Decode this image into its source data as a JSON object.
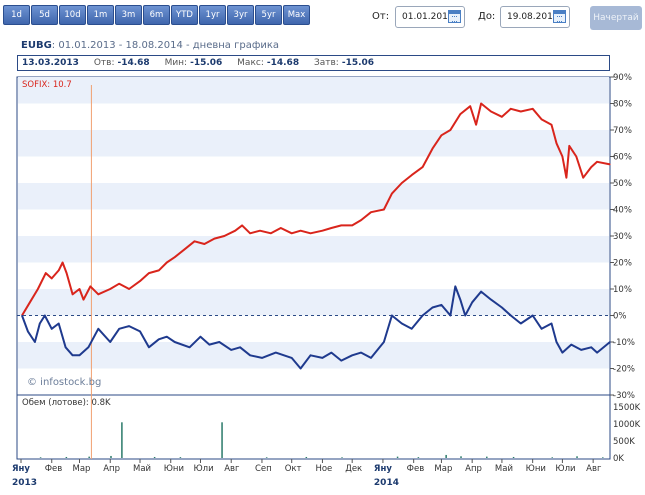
{
  "toolbar": {
    "periods": [
      "1d",
      "5d",
      "10d",
      "1m",
      "3m",
      "6m",
      "YTD",
      "1yr",
      "3yr",
      "5yr",
      "Max"
    ],
    "from_label": "От:",
    "from_value": "01.01.2013",
    "to_label": "До:",
    "to_value": "19.08.2014",
    "draw_label": "Начертай"
  },
  "title": {
    "symbol": "EUBG",
    "range": ": 01.01.2013 - 18.08.2014 - дневна графика"
  },
  "stats": {
    "date": "13.03.2013",
    "open_label": "Отв:",
    "open": "-14.68",
    "min_label": "Мин:",
    "min": "-15.06",
    "max_label": "Макс:",
    "max": "-14.68",
    "close_label": "Затв:",
    "close": "-15.06"
  },
  "overlay_label": "SOFIX: 10.7",
  "watermark": "© infostock.bg",
  "volume_label": "Обем (лотове): 0.8K",
  "colors": {
    "sofix": "#d9251c",
    "eubg": "#1f3a8e",
    "cursor": "#f0a070",
    "band": "#eaf0fa",
    "border": "#2b4a86"
  },
  "chart_data": {
    "type": "line",
    "price_axis": {
      "min": -30,
      "max": 90,
      "ticks": [
        "90%",
        "80%",
        "70%",
        "60%",
        "50%",
        "40%",
        "30%",
        "20%",
        "10%",
        "0%",
        "-10%",
        "-20%",
        "-30%"
      ]
    },
    "volume_axis": {
      "max": 1500000,
      "ticks": [
        "1500K",
        "1000K",
        "500K",
        "0K"
      ]
    },
    "months": [
      "Яну",
      "Фев",
      "Мар",
      "Апр",
      "Май",
      "Юни",
      "Юли",
      "Авг",
      "Сеп",
      "Окт",
      "Ное",
      "Дек",
      "Яну",
      "Фев",
      "Мар",
      "Апр",
      "Май",
      "Юни",
      "Юли",
      "Авг"
    ],
    "years": [
      "2013",
      "2014"
    ],
    "cursor_date": "2013-03-13",
    "series": [
      {
        "name": "SOFIX",
        "points": [
          [
            "2013-01-02",
            0
          ],
          [
            "2013-01-10",
            5
          ],
          [
            "2013-01-18",
            10
          ],
          [
            "2013-01-26",
            16
          ],
          [
            "2013-02-01",
            14
          ],
          [
            "2013-02-08",
            17
          ],
          [
            "2013-02-12",
            20
          ],
          [
            "2013-02-16",
            16
          ],
          [
            "2013-02-22",
            8
          ],
          [
            "2013-03-01",
            10
          ],
          [
            "2013-03-05",
            6
          ],
          [
            "2013-03-12",
            11
          ],
          [
            "2013-03-20",
            8
          ],
          [
            "2013-04-01",
            10
          ],
          [
            "2013-04-10",
            12
          ],
          [
            "2013-04-20",
            10
          ],
          [
            "2013-05-01",
            13
          ],
          [
            "2013-05-10",
            16
          ],
          [
            "2013-05-20",
            17
          ],
          [
            "2013-05-28",
            20
          ],
          [
            "2013-06-05",
            22
          ],
          [
            "2013-06-15",
            25
          ],
          [
            "2013-06-25",
            28
          ],
          [
            "2013-07-05",
            27
          ],
          [
            "2013-07-15",
            29
          ],
          [
            "2013-07-25",
            30
          ],
          [
            "2013-08-05",
            32
          ],
          [
            "2013-08-12",
            34
          ],
          [
            "2013-08-20",
            31
          ],
          [
            "2013-08-30",
            32
          ],
          [
            "2013-09-10",
            31
          ],
          [
            "2013-09-20",
            33
          ],
          [
            "2013-10-01",
            31
          ],
          [
            "2013-10-10",
            32
          ],
          [
            "2013-10-20",
            31
          ],
          [
            "2013-11-01",
            32
          ],
          [
            "2013-11-10",
            33
          ],
          [
            "2013-11-20",
            34
          ],
          [
            "2013-12-01",
            34
          ],
          [
            "2013-12-10",
            36
          ],
          [
            "2013-12-20",
            39
          ],
          [
            "2014-01-02",
            40
          ],
          [
            "2014-01-10",
            46
          ],
          [
            "2014-01-20",
            50
          ],
          [
            "2014-01-30",
            53
          ],
          [
            "2014-02-10",
            56
          ],
          [
            "2014-02-20",
            63
          ],
          [
            "2014-03-01",
            68
          ],
          [
            "2014-03-10",
            70
          ],
          [
            "2014-03-20",
            76
          ],
          [
            "2014-03-30",
            79
          ],
          [
            "2014-04-05",
            72
          ],
          [
            "2014-04-10",
            80
          ],
          [
            "2014-04-20",
            77
          ],
          [
            "2014-05-01",
            75
          ],
          [
            "2014-05-10",
            78
          ],
          [
            "2014-05-20",
            77
          ],
          [
            "2014-06-01",
            78
          ],
          [
            "2014-06-10",
            74
          ],
          [
            "2014-06-20",
            72
          ],
          [
            "2014-06-25",
            65
          ],
          [
            "2014-07-01",
            60
          ],
          [
            "2014-07-05",
            52
          ],
          [
            "2014-07-08",
            64
          ],
          [
            "2014-07-15",
            60
          ],
          [
            "2014-07-22",
            52
          ],
          [
            "2014-07-30",
            56
          ],
          [
            "2014-08-05",
            58
          ],
          [
            "2014-08-18",
            57
          ]
        ]
      },
      {
        "name": "EUBG",
        "points": [
          [
            "2013-01-02",
            0
          ],
          [
            "2013-01-08",
            -6
          ],
          [
            "2013-01-15",
            -10
          ],
          [
            "2013-01-20",
            -3
          ],
          [
            "2013-01-25",
            0
          ],
          [
            "2013-02-01",
            -5
          ],
          [
            "2013-02-08",
            -3
          ],
          [
            "2013-02-15",
            -12
          ],
          [
            "2013-02-22",
            -15
          ],
          [
            "2013-03-01",
            -15
          ],
          [
            "2013-03-10",
            -12
          ],
          [
            "2013-03-20",
            -5
          ],
          [
            "2013-04-01",
            -10
          ],
          [
            "2013-04-10",
            -5
          ],
          [
            "2013-04-20",
            -4
          ],
          [
            "2013-05-01",
            -6
          ],
          [
            "2013-05-10",
            -12
          ],
          [
            "2013-05-20",
            -9
          ],
          [
            "2013-05-28",
            -8
          ],
          [
            "2013-06-05",
            -10
          ],
          [
            "2013-06-20",
            -12
          ],
          [
            "2013-07-01",
            -8
          ],
          [
            "2013-07-10",
            -11
          ],
          [
            "2013-07-20",
            -10
          ],
          [
            "2013-08-01",
            -13
          ],
          [
            "2013-08-10",
            -12
          ],
          [
            "2013-08-20",
            -15
          ],
          [
            "2013-09-01",
            -16
          ],
          [
            "2013-09-15",
            -14
          ],
          [
            "2013-10-01",
            -16
          ],
          [
            "2013-10-10",
            -20
          ],
          [
            "2013-10-20",
            -15
          ],
          [
            "2013-11-01",
            -16
          ],
          [
            "2013-11-10",
            -14
          ],
          [
            "2013-11-20",
            -17
          ],
          [
            "2013-12-01",
            -15
          ],
          [
            "2013-12-10",
            -14
          ],
          [
            "2013-12-20",
            -16
          ],
          [
            "2014-01-02",
            -10
          ],
          [
            "2014-01-10",
            0
          ],
          [
            "2014-01-20",
            -3
          ],
          [
            "2014-01-30",
            -5
          ],
          [
            "2014-02-10",
            0
          ],
          [
            "2014-02-20",
            3
          ],
          [
            "2014-03-01",
            4
          ],
          [
            "2014-03-10",
            0
          ],
          [
            "2014-03-15",
            11
          ],
          [
            "2014-03-20",
            6
          ],
          [
            "2014-03-25",
            0
          ],
          [
            "2014-04-01",
            5
          ],
          [
            "2014-04-10",
            9
          ],
          [
            "2014-04-20",
            6
          ],
          [
            "2014-05-01",
            3
          ],
          [
            "2014-05-10",
            0
          ],
          [
            "2014-05-20",
            -3
          ],
          [
            "2014-06-01",
            0
          ],
          [
            "2014-06-10",
            -5
          ],
          [
            "2014-06-20",
            -3
          ],
          [
            "2014-06-25",
            -10
          ],
          [
            "2014-07-01",
            -14
          ],
          [
            "2014-07-10",
            -11
          ],
          [
            "2014-07-20",
            -13
          ],
          [
            "2014-07-30",
            -12
          ],
          [
            "2014-08-05",
            -14
          ],
          [
            "2014-08-18",
            -10
          ]
        ]
      }
    ],
    "volume": [
      [
        "2013-01-20",
        20000
      ],
      [
        "2013-02-15",
        30000
      ],
      [
        "2013-03-10",
        40000
      ],
      [
        "2013-04-01",
        60000
      ],
      [
        "2013-04-12",
        1050000
      ],
      [
        "2013-05-15",
        30000
      ],
      [
        "2013-06-10",
        25000
      ],
      [
        "2013-07-22",
        1050000
      ],
      [
        "2013-09-05",
        20000
      ],
      [
        "2013-10-15",
        30000
      ],
      [
        "2013-11-20",
        20000
      ],
      [
        "2014-01-15",
        40000
      ],
      [
        "2014-02-05",
        25000
      ],
      [
        "2014-03-05",
        90000
      ],
      [
        "2014-03-20",
        50000
      ],
      [
        "2014-04-15",
        40000
      ],
      [
        "2014-05-12",
        30000
      ],
      [
        "2014-06-20",
        20000
      ],
      [
        "2014-07-15",
        50000
      ],
      [
        "2014-08-10",
        20000
      ]
    ]
  }
}
